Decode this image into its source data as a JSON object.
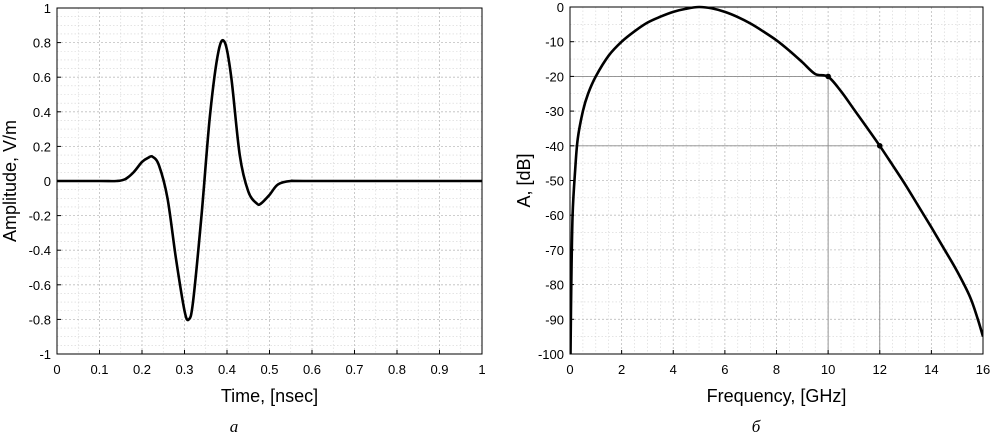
{
  "chart_data": [
    {
      "type": "line",
      "panel_label": "a",
      "xlabel": "Time, [nsec]",
      "ylabel": "Amplitude, V/m",
      "xlim": [
        0,
        1
      ],
      "ylim": [
        -1,
        1
      ],
      "x_ticks": [
        "0",
        "0.1",
        "0.2",
        "0.3",
        "0.4",
        "0.5",
        "0.6",
        "0.7",
        "0.8",
        "0.9",
        "1"
      ],
      "y_ticks": [
        "-1",
        "-0.8",
        "-0.6",
        "-0.4",
        "-0.2",
        "0",
        "0.2",
        "0.4",
        "0.6",
        "0.8",
        "1"
      ],
      "grid": true,
      "series": [
        {
          "x": [
            0,
            0.1,
            0.14,
            0.16,
            0.18,
            0.2,
            0.215,
            0.225,
            0.24,
            0.26,
            0.28,
            0.3,
            0.31,
            0.32,
            0.34,
            0.36,
            0.38,
            0.395,
            0.41,
            0.43,
            0.45,
            0.47,
            0.48,
            0.5,
            0.52,
            0.55,
            0.6,
            1
          ],
          "y": [
            0,
            0,
            0.0,
            0.01,
            0.05,
            0.11,
            0.135,
            0.14,
            0.09,
            -0.1,
            -0.45,
            -0.75,
            -0.8,
            -0.7,
            -0.2,
            0.38,
            0.75,
            0.8,
            0.6,
            0.15,
            -0.06,
            -0.13,
            -0.13,
            -0.08,
            -0.02,
            0,
            0,
            0
          ]
        }
      ]
    },
    {
      "type": "line",
      "panel_label": "б",
      "xlabel": "Frequency, [GHz]",
      "ylabel": "A, [dB]",
      "xlim": [
        0,
        16
      ],
      "ylim": [
        -100,
        0
      ],
      "x_ticks": [
        "0",
        "2",
        "4",
        "6",
        "8",
        "10",
        "12",
        "14",
        "16"
      ],
      "y_ticks": [
        "-100",
        "-90",
        "-80",
        "-70",
        "-60",
        "-50",
        "-40",
        "-30",
        "-20",
        "-10",
        "0"
      ],
      "grid": true,
      "series": [
        {
          "x": [
            0.02,
            0.05,
            0.1,
            0.2,
            0.3,
            0.5,
            0.7,
            1,
            1.5,
            2,
            2.5,
            3,
            3.5,
            4,
            4.5,
            5,
            5.5,
            6,
            6.5,
            7,
            7.5,
            8,
            8.5,
            9,
            9.5,
            10,
            10.5,
            11,
            11.5,
            12,
            12.5,
            13,
            13.5,
            14,
            14.5,
            15,
            15.5,
            15.8,
            16
          ],
          "y": [
            -100,
            -80,
            -60,
            -47,
            -38,
            -30,
            -25,
            -20,
            -14,
            -10,
            -7,
            -4.5,
            -2.8,
            -1.4,
            -0.5,
            0,
            -0.4,
            -1.4,
            -2.9,
            -4.8,
            -7.1,
            -9.6,
            -12.6,
            -15.9,
            -19.3,
            -20.1,
            -24.3,
            -29.5,
            -34.7,
            -40,
            -45.6,
            -51.3,
            -57.4,
            -63.5,
            -69.8,
            -76.2,
            -83.6,
            -90,
            -95
          ]
        }
      ],
      "markers": [
        {
          "x": 10,
          "y": -20
        },
        {
          "x": 12,
          "y": -40
        }
      ]
    }
  ]
}
